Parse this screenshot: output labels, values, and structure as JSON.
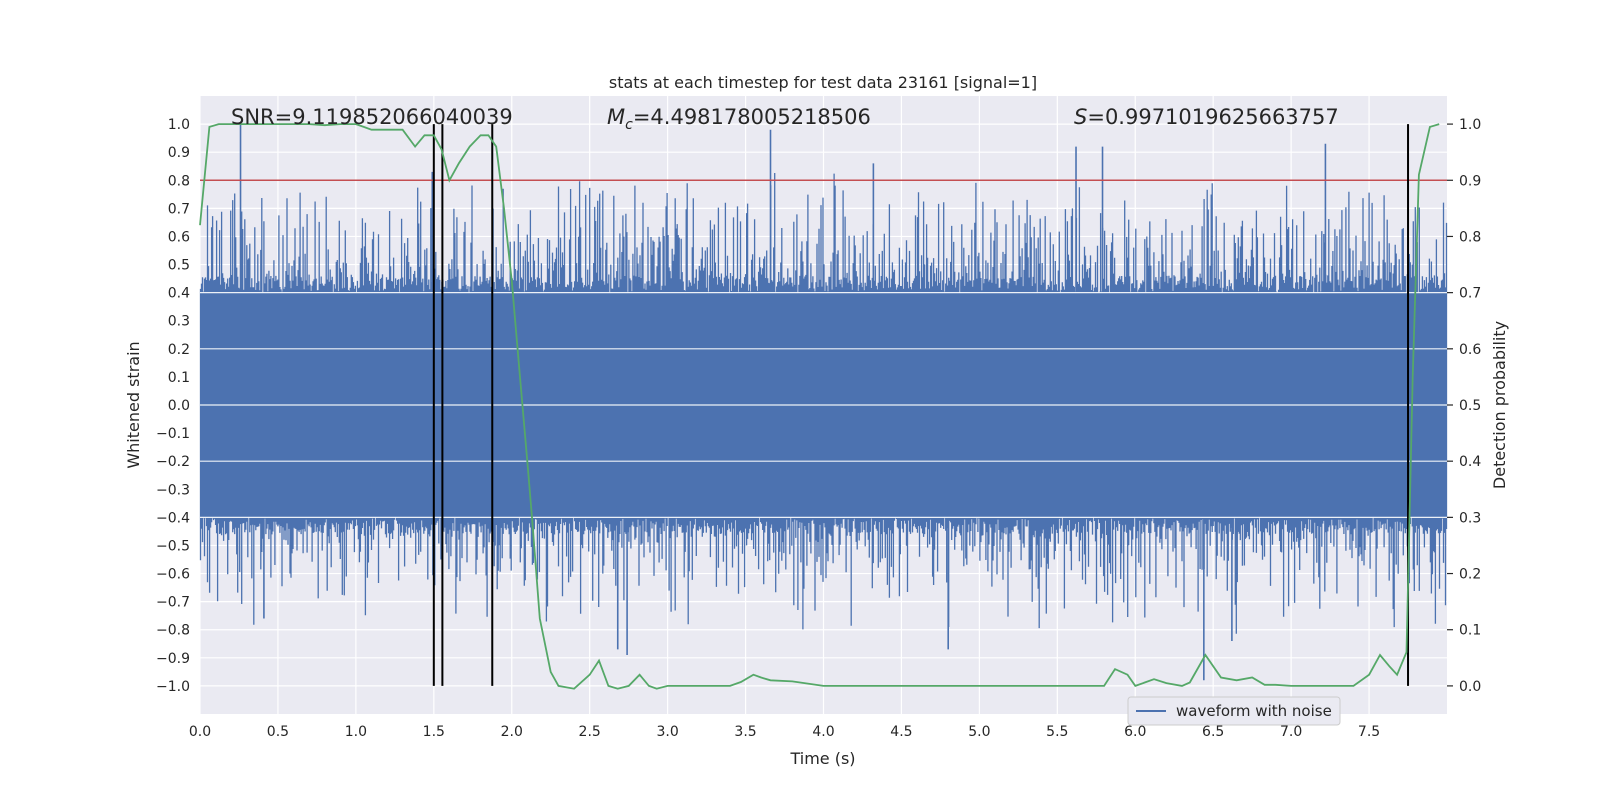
{
  "chart_data": {
    "type": "line",
    "title": "stats at each timestep for test data 23161 [signal=1]",
    "xlabel": "Time (s)",
    "ylabel": "Whitened strain",
    "y2label": "Detection probability",
    "xlim": [
      0.0,
      8.0
    ],
    "ylim": [
      -1.1,
      1.1
    ],
    "y2lim": [
      -0.05,
      1.05
    ],
    "x_ticks": [
      0.0,
      0.5,
      1.0,
      1.5,
      2.0,
      2.5,
      3.0,
      3.5,
      4.0,
      4.5,
      5.0,
      5.5,
      6.0,
      6.5,
      7.0,
      7.5
    ],
    "x_tick_labels": [
      "0.0",
      "0.5",
      "1.0",
      "1.5",
      "2.0",
      "2.5",
      "3.0",
      "3.5",
      "4.0",
      "4.5",
      "5.0",
      "5.5",
      "6.0",
      "6.5",
      "7.0",
      "7.5"
    ],
    "y_ticks": [
      -1.0,
      -0.9,
      -0.8,
      -0.7,
      -0.6,
      -0.5,
      -0.4,
      -0.3,
      -0.2,
      -0.1,
      0.0,
      0.1,
      0.2,
      0.3,
      0.4,
      0.5,
      0.6,
      0.7,
      0.8,
      0.9,
      1.0
    ],
    "y_tick_labels": [
      "−1.0",
      "−0.9",
      "−0.8",
      "−0.7",
      "−0.6",
      "−0.5",
      "−0.4",
      "−0.3",
      "−0.2",
      "−0.1",
      "0.0",
      "0.1",
      "0.2",
      "0.3",
      "0.4",
      "0.5",
      "0.6",
      "0.7",
      "0.8",
      "0.9",
      "1.0"
    ],
    "y2_ticks": [
      0.0,
      0.1,
      0.2,
      0.3,
      0.4,
      0.5,
      0.6,
      0.7,
      0.8,
      0.9,
      1.0
    ],
    "y2_tick_labels": [
      "0.0",
      "0.1",
      "0.2",
      "0.3",
      "0.4",
      "0.5",
      "0.6",
      "0.7",
      "0.8",
      "0.9",
      "1.0"
    ],
    "annotations": {
      "snr": "SNR=9.119852066040039",
      "mc_symbol": "M",
      "mc_sub": "c",
      "mc_value": "=4.498178005218506",
      "s_symbol": "S",
      "s_value": "=0.9971019625663757"
    },
    "legend": {
      "label": "waveform with noise",
      "position": "lower-right"
    },
    "threshold": {
      "value": 0.9,
      "axis": "y2",
      "color": "#c44e52"
    },
    "vertical_markers": [
      1.5,
      1.555,
      1.875,
      7.75
    ],
    "waveform": {
      "name": "waveform with noise",
      "color": "#4c72b0",
      "duration_s": 8.0,
      "envelope_typical": 0.4,
      "notable_peaks": [
        {
          "t": 0.26,
          "v": 1.0
        },
        {
          "t": 1.49,
          "v": 0.83
        },
        {
          "t": 3.66,
          "v": 0.98
        },
        {
          "t": 4.32,
          "v": 0.86
        },
        {
          "t": 5.62,
          "v": 0.92
        },
        {
          "t": 5.79,
          "v": 0.92
        },
        {
          "t": 7.22,
          "v": 0.93
        },
        {
          "t": 0.41,
          "v": -0.76
        },
        {
          "t": 2.68,
          "v": -0.87
        },
        {
          "t": 2.74,
          "v": -0.89
        },
        {
          "t": 4.8,
          "v": -0.87
        },
        {
          "t": 6.44,
          "v": -0.98
        },
        {
          "t": 6.62,
          "v": -0.84
        }
      ]
    },
    "detection_probability": {
      "name": "Detection probability",
      "color": "#55a868",
      "axis": "y2",
      "x": [
        0.0,
        0.06,
        0.12,
        0.2,
        0.3,
        0.45,
        0.6,
        0.7,
        0.8,
        0.9,
        1.0,
        1.05,
        1.1,
        1.2,
        1.25,
        1.3,
        1.38,
        1.44,
        1.5,
        1.55,
        1.6,
        1.66,
        1.73,
        1.8,
        1.85,
        1.9,
        1.95,
        2.0,
        2.05,
        2.1,
        2.13,
        2.18,
        2.25,
        2.3,
        2.4,
        2.5,
        2.56,
        2.62,
        2.68,
        2.75,
        2.82,
        2.88,
        2.93,
        3.0,
        3.2,
        3.3,
        3.4,
        3.47,
        3.55,
        3.6,
        3.66,
        3.8,
        4.0,
        4.3,
        4.43,
        4.6,
        5.0,
        5.6,
        5.8,
        5.87,
        5.95,
        6.0,
        6.12,
        6.2,
        6.3,
        6.35,
        6.45,
        6.55,
        6.65,
        6.75,
        6.83,
        6.9,
        7.0,
        7.2,
        7.35,
        7.4,
        7.5,
        7.57,
        7.63,
        7.68,
        7.74,
        7.78,
        7.82,
        7.89,
        7.95
      ],
      "y": [
        0.82,
        0.995,
        1.0,
        1.0,
        1.0,
        1.0,
        1.0,
        1.0,
        0.998,
        1.0,
        1.0,
        0.995,
        0.99,
        0.99,
        0.99,
        0.99,
        0.96,
        0.98,
        0.98,
        0.955,
        0.9,
        0.93,
        0.96,
        0.98,
        0.98,
        0.96,
        0.85,
        0.72,
        0.56,
        0.4,
        0.3,
        0.12,
        0.025,
        0.0,
        -0.005,
        0.02,
        0.045,
        0.0,
        -0.005,
        0.0,
        0.02,
        0.0,
        -0.005,
        0.0,
        0.0,
        0.0,
        0.0,
        0.007,
        0.02,
        0.015,
        0.01,
        0.008,
        0.0,
        0.0,
        0.0,
        0.0,
        0.0,
        0.0,
        0.0,
        0.03,
        0.02,
        0.0,
        0.012,
        0.005,
        0.0,
        0.006,
        0.055,
        0.015,
        0.01,
        0.015,
        0.002,
        0.002,
        0.0,
        0.0,
        0.0,
        0.0,
        0.02,
        0.055,
        0.035,
        0.02,
        0.06,
        0.55,
        0.91,
        0.995,
        1.0
      ]
    }
  }
}
